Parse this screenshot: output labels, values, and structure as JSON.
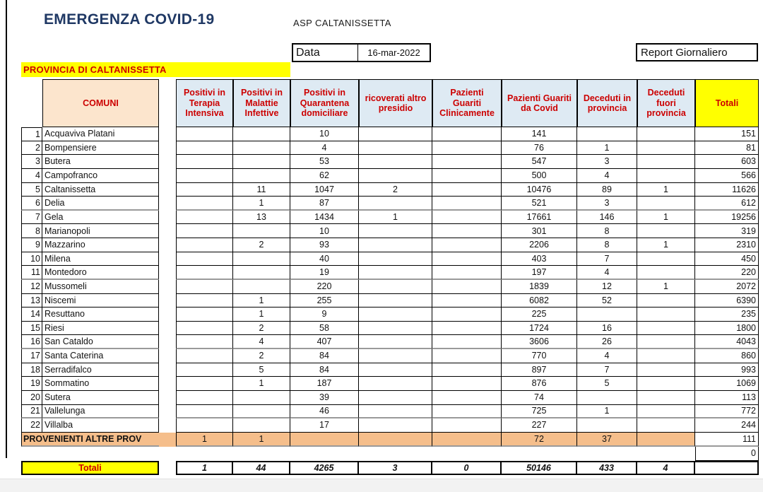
{
  "header": {
    "title": "EMERGENZA COVID-19",
    "org": "ASP CALTANISSETTA",
    "date_label": "Data",
    "date_value": "16-mar-2022",
    "report_label": "Report Giornaliero",
    "province_banner": "PROVINCIA DI CALTANISSETTA"
  },
  "table": {
    "comuni_header": "COMUNI",
    "columns": [
      "Positivi in Terapia Intensiva",
      "Positivi in Malattie Infettive",
      "Positivi in Quarantena domiciliare",
      "ricoverati altro presidio",
      "Pazienti Guariti Clinicamente",
      "Pazienti Guariti da Covid",
      "Deceduti in provincia",
      "Deceduti fuori provincia",
      "Totali"
    ],
    "rows": [
      {
        "n": "1",
        "comune": "Acquaviva Platani",
        "values": [
          "",
          "",
          "10",
          "",
          "",
          "141",
          "",
          ""
        ],
        "total": "151"
      },
      {
        "n": "2",
        "comune": "Bompensiere",
        "values": [
          "",
          "",
          "4",
          "",
          "",
          "76",
          "1",
          ""
        ],
        "total": "81"
      },
      {
        "n": "3",
        "comune": "Butera",
        "values": [
          "",
          "",
          "53",
          "",
          "",
          "547",
          "3",
          ""
        ],
        "total": "603"
      },
      {
        "n": "4",
        "comune": "Campofranco",
        "values": [
          "",
          "",
          "62",
          "",
          "",
          "500",
          "4",
          ""
        ],
        "total": "566"
      },
      {
        "n": "5",
        "comune": "Caltanissetta",
        "values": [
          "",
          "11",
          "1047",
          "2",
          "",
          "10476",
          "89",
          "1"
        ],
        "total": "11626"
      },
      {
        "n": "6",
        "comune": "Delia",
        "values": [
          "",
          "1",
          "87",
          "",
          "",
          "521",
          "3",
          ""
        ],
        "total": "612"
      },
      {
        "n": "7",
        "comune": "Gela",
        "values": [
          "",
          "13",
          "1434",
          "1",
          "",
          "17661",
          "146",
          "1"
        ],
        "total": "19256"
      },
      {
        "n": "8",
        "comune": "Marianopoli",
        "values": [
          "",
          "",
          "10",
          "",
          "",
          "301",
          "8",
          ""
        ],
        "total": "319"
      },
      {
        "n": "9",
        "comune": "Mazzarino",
        "values": [
          "",
          "2",
          "93",
          "",
          "",
          "2206",
          "8",
          "1"
        ],
        "total": "2310"
      },
      {
        "n": "10",
        "comune": "Milena",
        "values": [
          "",
          "",
          "40",
          "",
          "",
          "403",
          "7",
          ""
        ],
        "total": "450"
      },
      {
        "n": "11",
        "comune": "Montedoro",
        "values": [
          "",
          "",
          "19",
          "",
          "",
          "197",
          "4",
          ""
        ],
        "total": "220"
      },
      {
        "n": "12",
        "comune": "Mussomeli",
        "values": [
          "",
          "",
          "220",
          "",
          "",
          "1839",
          "12",
          "1"
        ],
        "total": "2072"
      },
      {
        "n": "13",
        "comune": "Niscemi",
        "values": [
          "",
          "1",
          "255",
          "",
          "",
          "6082",
          "52",
          ""
        ],
        "total": "6390"
      },
      {
        "n": "14",
        "comune": "Resuttano",
        "values": [
          "",
          "1",
          "9",
          "",
          "",
          "225",
          "",
          ""
        ],
        "total": "235"
      },
      {
        "n": "15",
        "comune": "Riesi",
        "values": [
          "",
          "2",
          "58",
          "",
          "",
          "1724",
          "16",
          ""
        ],
        "total": "1800"
      },
      {
        "n": "16",
        "comune": "San Cataldo",
        "values": [
          "",
          "4",
          "407",
          "",
          "",
          "3606",
          "26",
          ""
        ],
        "total": "4043"
      },
      {
        "n": "17",
        "comune": "Santa Caterina",
        "values": [
          "",
          "2",
          "84",
          "",
          "",
          "770",
          "4",
          ""
        ],
        "total": "860"
      },
      {
        "n": "18",
        "comune": "Serradifalco",
        "values": [
          "",
          "5",
          "84",
          "",
          "",
          "897",
          "7",
          ""
        ],
        "total": "993"
      },
      {
        "n": "19",
        "comune": "Sommatino",
        "values": [
          "",
          "1",
          "187",
          "",
          "",
          "876",
          "5",
          ""
        ],
        "total": "1069"
      },
      {
        "n": "20",
        "comune": "Sutera",
        "values": [
          "",
          "",
          "39",
          "",
          "",
          "74",
          "",
          ""
        ],
        "total": "113"
      },
      {
        "n": "21",
        "comune": "Vallelunga",
        "values": [
          "",
          "",
          "46",
          "",
          "",
          "725",
          "1",
          ""
        ],
        "total": "772"
      },
      {
        "n": "22",
        "comune": "Villalba",
        "values": [
          "",
          "",
          "17",
          "",
          "",
          "227",
          "",
          ""
        ],
        "total": "244"
      }
    ],
    "altre_prov": {
      "label": "PROVENIENTI ALTRE PROV",
      "values": [
        "1",
        "1",
        "",
        "",
        "",
        "72",
        "37",
        ""
      ],
      "total": "111"
    },
    "spacer_total": "0",
    "totals": {
      "label": "Totali",
      "values": [
        "1",
        "44",
        "4265",
        "3",
        "0",
        "50146",
        "433",
        "4"
      ],
      "total": ""
    }
  },
  "colors": {
    "title_blue": "#1f3864",
    "accent_red": "#cc0000",
    "header_blue": "#deeaf3",
    "comuni_peach": "#fce5cd",
    "totali_yellow": "#ffff00",
    "altre_prov_orange": "#f5be8b"
  }
}
